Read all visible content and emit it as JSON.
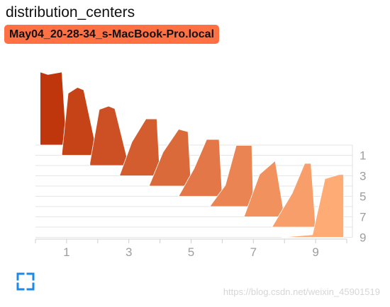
{
  "header": {
    "title": "distribution_centers",
    "run_label": "May04_20-28-34_s-MacBook-Pro.local",
    "run_color": "#ff7043"
  },
  "controls": {
    "expand_icon": "fullscreen-expand-icon"
  },
  "watermark": "https://blog.csdn.net/weixin_45901519",
  "chart_data": {
    "type": "histogram-offset",
    "series_color_start": "#bf360c",
    "series_color_end": "#ffab76",
    "x_ticks": [
      1,
      3,
      5,
      7,
      9
    ],
    "xlim": [
      0,
      10
    ],
    "y_ticks": [
      1,
      3,
      5,
      7,
      9
    ],
    "ylim": [
      0,
      9
    ],
    "steps": [
      {
        "step": 0,
        "x": [
          0.15,
          0.4,
          0.85,
          1.0
        ],
        "h": [
          0.86,
          0.83,
          0.86,
          0.0
        ]
      },
      {
        "step": 1,
        "x": [
          0.85,
          1.05,
          1.35,
          1.55,
          2.0
        ],
        "h": [
          0.02,
          0.73,
          0.8,
          0.77,
          0.0
        ]
      },
      {
        "step": 2,
        "x": [
          1.75,
          2.05,
          2.35,
          2.55,
          3.0
        ],
        "h": [
          0.03,
          0.66,
          0.7,
          0.67,
          0.0
        ]
      },
      {
        "step": 3,
        "x": [
          2.7,
          3.1,
          3.55,
          3.9,
          4.0
        ],
        "h": [
          0.0,
          0.4,
          0.67,
          0.67,
          0.0
        ]
      },
      {
        "step": 4,
        "x": [
          3.65,
          4.1,
          4.6,
          4.9,
          5.0
        ],
        "h": [
          0.0,
          0.4,
          0.67,
          0.64,
          0.0
        ]
      },
      {
        "step": 5,
        "x": [
          4.6,
          5.1,
          5.5,
          5.9,
          6.0
        ],
        "h": [
          0.0,
          0.33,
          0.67,
          0.67,
          0.0
        ]
      },
      {
        "step": 6,
        "x": [
          5.6,
          6.1,
          6.45,
          6.95,
          7.0
        ],
        "h": [
          0.0,
          0.25,
          0.72,
          0.72,
          0.0
        ]
      },
      {
        "step": 7,
        "x": [
          6.7,
          7.2,
          7.7,
          8.0
        ],
        "h": [
          0.0,
          0.5,
          0.66,
          0.0
        ]
      },
      {
        "step": 8,
        "x": [
          7.6,
          8.25,
          8.65,
          8.85,
          9.0
        ],
        "h": [
          0.0,
          0.4,
          0.75,
          0.75,
          0.0
        ]
      },
      {
        "step": 9,
        "x": [
          7.9,
          8.9,
          9.3,
          9.75,
          9.9
        ],
        "h": [
          0.0,
          0.03,
          0.69,
          0.74,
          0.74
        ]
      }
    ]
  }
}
